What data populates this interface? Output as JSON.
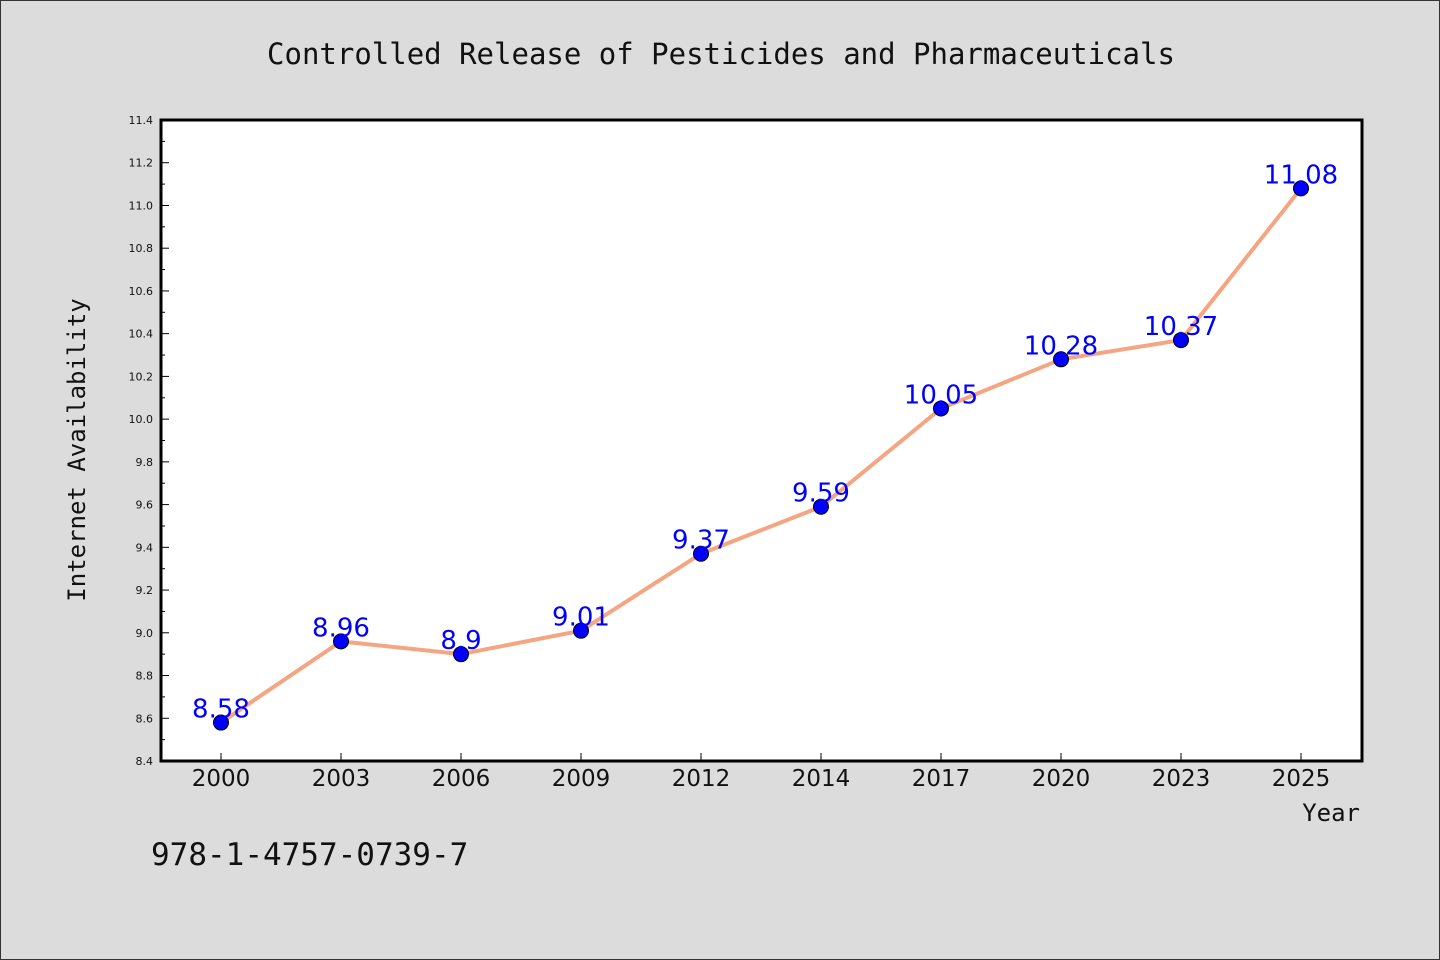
{
  "chart_data": {
    "type": "line",
    "title": "Controlled Release of Pesticides and Pharmaceuticals",
    "xlabel": "Year",
    "ylabel": "Internet Availability",
    "categories": [
      "2000",
      "2003",
      "2006",
      "2009",
      "2012",
      "2014",
      "2017",
      "2020",
      "2023",
      "2025"
    ],
    "values": [
      8.58,
      8.96,
      8.9,
      9.01,
      9.37,
      9.59,
      10.05,
      10.28,
      10.37,
      11.08
    ],
    "data_labels": [
      "8.58",
      "8.96",
      "8.9",
      "9.01",
      "9.37",
      "9.59",
      "10.05",
      "10.28",
      "10.37",
      "11.08"
    ],
    "ylim": [
      8.4,
      11.4
    ],
    "yticks": [
      8.4,
      8.6,
      8.8,
      9.0,
      9.2,
      9.4,
      9.6,
      9.8,
      10.0,
      10.2,
      10.4,
      10.6,
      10.8,
      11.0,
      11.2,
      11.4
    ],
    "ytick_labels": [
      "8.4",
      "8.6",
      "8.8",
      "9.0",
      "9.2",
      "9.4",
      "9.6",
      "9.8",
      "10.0",
      "10.2",
      "10.4",
      "10.6",
      "10.8",
      "11.0",
      "11.2",
      "11.4"
    ],
    "grid": false,
    "legend": "none",
    "line_color": "#f4a582",
    "marker_color": "#0000ff",
    "label_color": "#0000ff",
    "plot_background": "#ffffff",
    "figure_background": "#dcdcdc"
  },
  "footer": {
    "isbn": "978-1-4757-0739-7"
  }
}
